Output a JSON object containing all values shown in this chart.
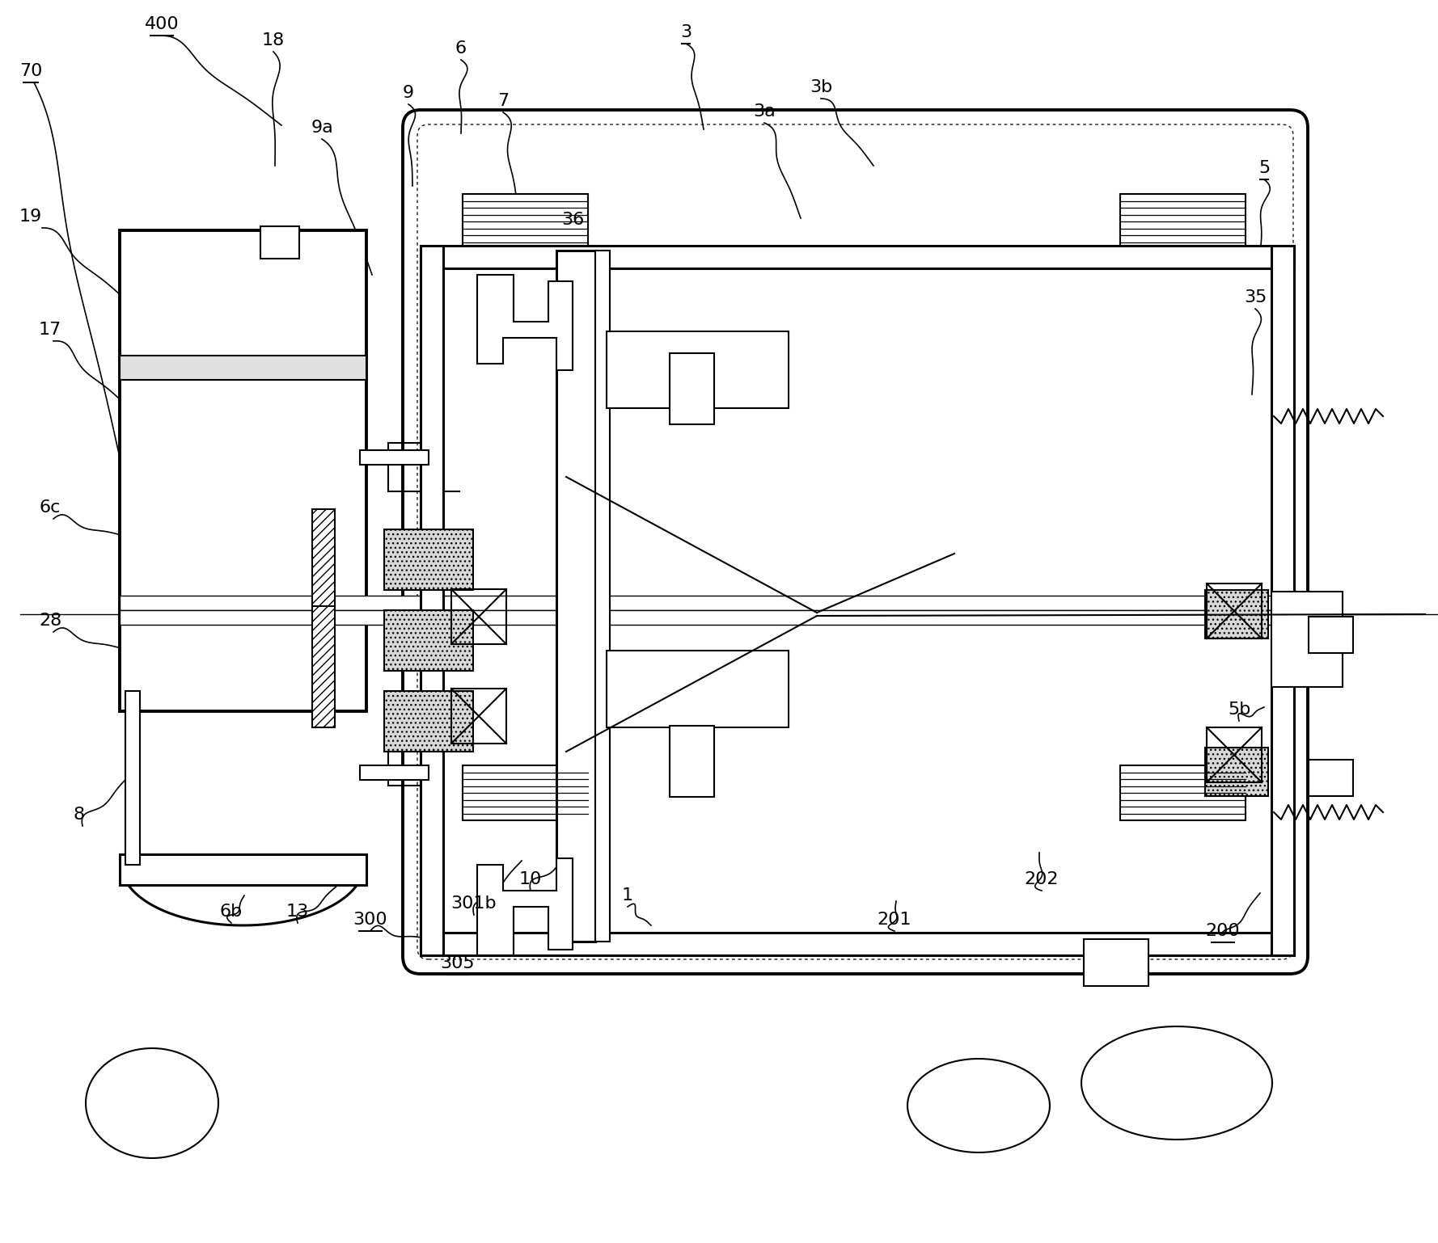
{
  "bg_color": "#ffffff",
  "line_color": "#000000",
  "figsize": [
    17.78,
    15.38
  ],
  "dpi": 100,
  "labels_data": [
    [
      "400",
      200,
      30,
      true
    ],
    [
      "70",
      38,
      88,
      true
    ],
    [
      "18",
      338,
      50,
      false
    ],
    [
      "6",
      570,
      60,
      false
    ],
    [
      "7",
      622,
      125,
      false
    ],
    [
      "9a",
      398,
      158,
      false
    ],
    [
      "9",
      505,
      115,
      false
    ],
    [
      "3",
      848,
      40,
      true
    ],
    [
      "3a",
      945,
      138,
      false
    ],
    [
      "3b",
      1015,
      108,
      false
    ],
    [
      "5",
      1563,
      208,
      true
    ],
    [
      "36",
      708,
      272,
      false
    ],
    [
      "35",
      1552,
      368,
      false
    ],
    [
      "19",
      38,
      268,
      false
    ],
    [
      "17",
      62,
      408,
      false
    ],
    [
      "6c",
      62,
      628,
      false
    ],
    [
      "28",
      62,
      768,
      false
    ],
    [
      "8",
      98,
      1008,
      false
    ],
    [
      "6b",
      286,
      1128,
      false
    ],
    [
      "13",
      368,
      1128,
      false
    ],
    [
      "300",
      458,
      1138,
      true
    ],
    [
      "305",
      566,
      1192,
      true
    ],
    [
      "301b",
      586,
      1118,
      false
    ],
    [
      "10",
      656,
      1088,
      false
    ],
    [
      "1",
      776,
      1108,
      false
    ],
    [
      "201",
      1106,
      1138,
      false
    ],
    [
      "202",
      1288,
      1088,
      false
    ],
    [
      "200",
      1512,
      1152,
      true
    ],
    [
      "5b",
      1532,
      878,
      false
    ]
  ],
  "leader_lines": [
    [
      200,
      44,
      348,
      155
    ],
    [
      42,
      102,
      160,
      620
    ],
    [
      338,
      64,
      340,
      205
    ],
    [
      570,
      74,
      570,
      165
    ],
    [
      622,
      139,
      640,
      258
    ],
    [
      505,
      129,
      510,
      230
    ],
    [
      398,
      172,
      460,
      340
    ],
    [
      848,
      54,
      870,
      160
    ],
    [
      945,
      152,
      990,
      270
    ],
    [
      1015,
      122,
      1080,
      205
    ],
    [
      1563,
      222,
      1558,
      315
    ],
    [
      708,
      286,
      720,
      375
    ],
    [
      1552,
      382,
      1548,
      488
    ],
    [
      52,
      282,
      160,
      375
    ],
    [
      66,
      422,
      160,
      505
    ],
    [
      66,
      642,
      160,
      665
    ],
    [
      66,
      782,
      160,
      805
    ],
    [
      102,
      1022,
      165,
      955
    ],
    [
      286,
      1142,
      302,
      1108
    ],
    [
      368,
      1142,
      418,
      1095
    ],
    [
      458,
      1152,
      532,
      1162
    ],
    [
      586,
      1132,
      645,
      1065
    ],
    [
      656,
      1102,
      714,
      1045
    ],
    [
      776,
      1122,
      805,
      1145
    ],
    [
      1106,
      1152,
      1108,
      1115
    ],
    [
      1288,
      1102,
      1285,
      1055
    ],
    [
      1512,
      1166,
      1558,
      1105
    ],
    [
      1532,
      892,
      1563,
      875
    ]
  ]
}
